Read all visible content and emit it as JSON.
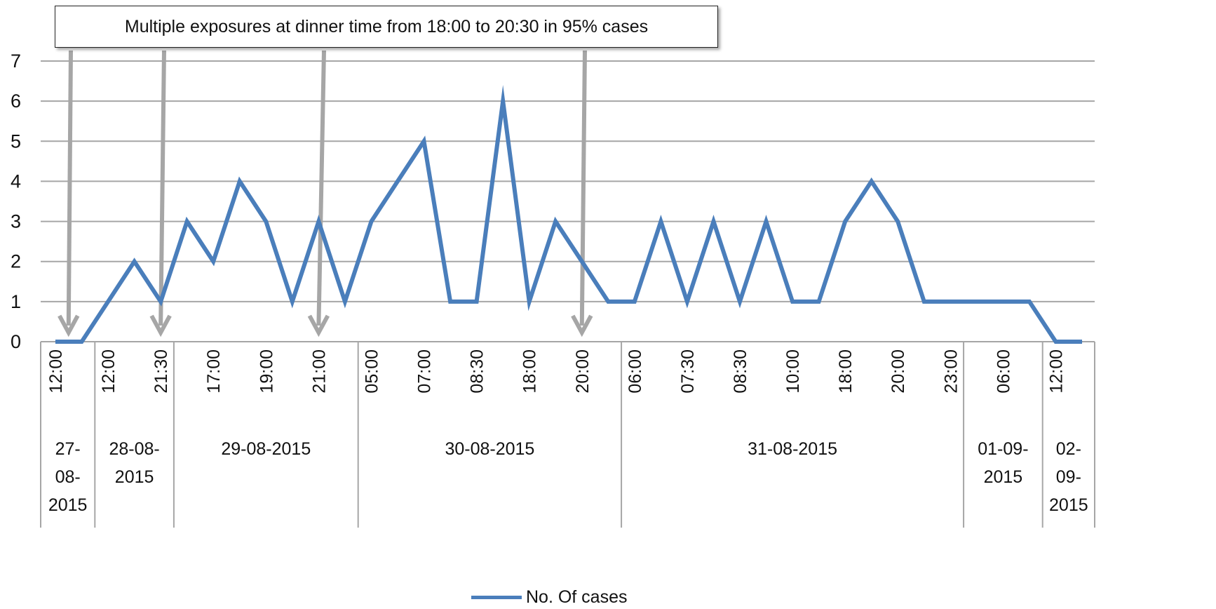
{
  "colors": {
    "series": "#4a7ebb",
    "annotation_arrow": "#a6a6a6",
    "grid": "#a6a6a6",
    "axis": "#a6a6a6",
    "text": "#111111"
  },
  "annotation": {
    "text": "Multiple exposures at dinner time from 18:00 to 20:30 in 95% cases"
  },
  "legend": {
    "label": "No. Of cases"
  },
  "chart_data": {
    "type": "line",
    "title": "",
    "xlabel": "",
    "ylabel": "",
    "ylim": [
      0,
      7
    ],
    "yticks": [
      "0",
      "1",
      "2",
      "3",
      "4",
      "5",
      "6",
      "7"
    ],
    "grid": true,
    "legend_position": "bottom",
    "tick_labels": [
      "12:00",
      "12:00",
      "21:30",
      "17:00",
      "19:00",
      "21:00",
      "05:00",
      "07:00",
      "08:30",
      "18:00",
      "20:00",
      "06:00",
      "07:30",
      "08:30",
      "10:00",
      "18:00",
      "20:00",
      "23:00",
      "06:00",
      "12:00"
    ],
    "tick_label_indices": [
      0,
      2,
      4,
      6,
      8,
      10,
      12,
      14,
      16,
      18,
      20,
      22,
      24,
      26,
      28,
      30,
      32,
      34,
      36,
      38
    ],
    "date_groups": [
      {
        "lines": [
          "27-",
          "08-",
          "2015"
        ],
        "start": 0,
        "end": 1
      },
      {
        "lines": [
          "28-08-",
          "2015"
        ],
        "start": 2,
        "end": 4
      },
      {
        "lines": [
          "29-08-2015"
        ],
        "start": 5,
        "end": 11
      },
      {
        "lines": [
          "30-08-2015"
        ],
        "start": 12,
        "end": 21
      },
      {
        "lines": [
          "31-08-2015"
        ],
        "start": 22,
        "end": 34
      },
      {
        "lines": [
          "01-09-",
          "2015"
        ],
        "start": 35,
        "end": 37
      },
      {
        "lines": [
          "02-",
          "09-",
          "2015"
        ],
        "start": 38,
        "end": 39
      }
    ],
    "series": [
      {
        "name": "No. Of cases",
        "values": [
          0,
          0,
          1,
          2,
          1,
          3,
          2,
          4,
          3,
          1,
          3,
          1,
          3,
          4,
          5,
          1,
          1,
          6,
          1,
          3,
          2,
          1,
          1,
          3,
          1,
          3,
          1,
          3,
          1,
          1,
          3,
          4,
          3,
          1,
          1,
          1,
          1,
          1,
          0,
          0
        ]
      }
    ],
    "annotation_arrow_targets": [
      0.5,
      4,
      10,
      20
    ]
  }
}
